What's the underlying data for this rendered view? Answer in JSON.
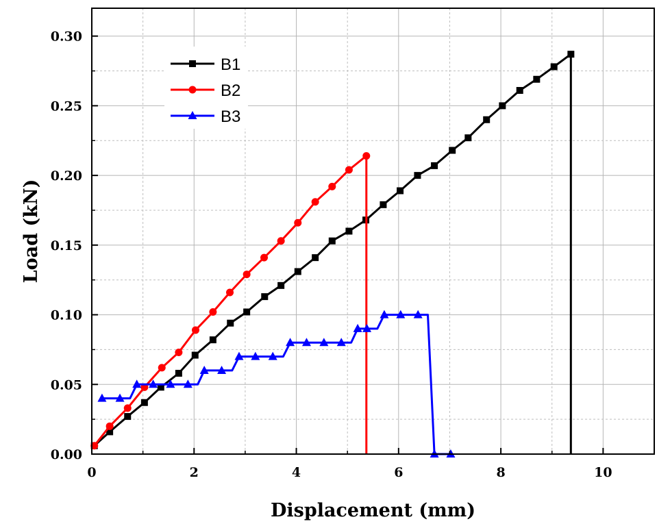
{
  "chart_data": {
    "type": "line",
    "title": "",
    "xlabel": "Displacement (mm)",
    "ylabel": "Load (kN)",
    "xlim": [
      0,
      11
    ],
    "ylim": [
      0,
      0.32
    ],
    "xticks": [
      "0",
      "2",
      "4",
      "6",
      "8",
      "10"
    ],
    "yticks": [
      "0.00",
      "0.05",
      "0.10",
      "0.15",
      "0.20",
      "0.25",
      "0.30"
    ],
    "grid": true,
    "legend_position": "top-left",
    "series": [
      {
        "name": "B1",
        "color": "#000000",
        "marker": "square",
        "x": [
          0.05,
          0.35,
          0.7,
          1.03,
          1.35,
          1.7,
          2.02,
          2.37,
          2.71,
          3.03,
          3.38,
          3.7,
          4.03,
          4.37,
          4.7,
          5.03,
          5.36,
          5.7,
          6.03,
          6.37,
          6.7,
          7.05,
          7.36,
          7.72,
          8.03,
          8.37,
          8.7,
          9.04,
          9.37,
          9.37
        ],
        "y": [
          0.006,
          0.016,
          0.027,
          0.037,
          0.048,
          0.058,
          0.071,
          0.082,
          0.094,
          0.102,
          0.113,
          0.121,
          0.131,
          0.141,
          0.153,
          0.16,
          0.168,
          0.179,
          0.189,
          0.2,
          0.207,
          0.218,
          0.227,
          0.24,
          0.25,
          0.261,
          0.269,
          0.278,
          0.287,
          0.0
        ]
      },
      {
        "name": "B2",
        "color": "#ff0000",
        "marker": "circle",
        "x": [
          0.05,
          0.35,
          0.7,
          1.03,
          1.37,
          1.7,
          2.03,
          2.37,
          2.7,
          3.03,
          3.37,
          3.7,
          4.03,
          4.37,
          4.7,
          5.03,
          5.37,
          5.37
        ],
        "y": [
          0.006,
          0.02,
          0.033,
          0.048,
          0.062,
          0.073,
          0.089,
          0.102,
          0.116,
          0.129,
          0.141,
          0.153,
          0.166,
          0.181,
          0.192,
          0.204,
          0.214,
          0.0
        ]
      },
      {
        "name": "B3",
        "color": "#0000ff",
        "marker": "triangle",
        "x": [
          0.2,
          0.55,
          0.88,
          1.2,
          1.54,
          1.88,
          2.2,
          2.54,
          2.88,
          3.2,
          3.54,
          3.88,
          4.2,
          4.54,
          4.88,
          5.2,
          5.38,
          5.72,
          6.04,
          6.38,
          6.7,
          7.02
        ],
        "y": [
          0.04,
          0.04,
          0.05,
          0.05,
          0.05,
          0.05,
          0.06,
          0.06,
          0.07,
          0.07,
          0.07,
          0.08,
          0.08,
          0.08,
          0.08,
          0.09,
          0.09,
          0.1,
          0.1,
          0.1,
          0.0,
          0.0
        ]
      }
    ]
  }
}
